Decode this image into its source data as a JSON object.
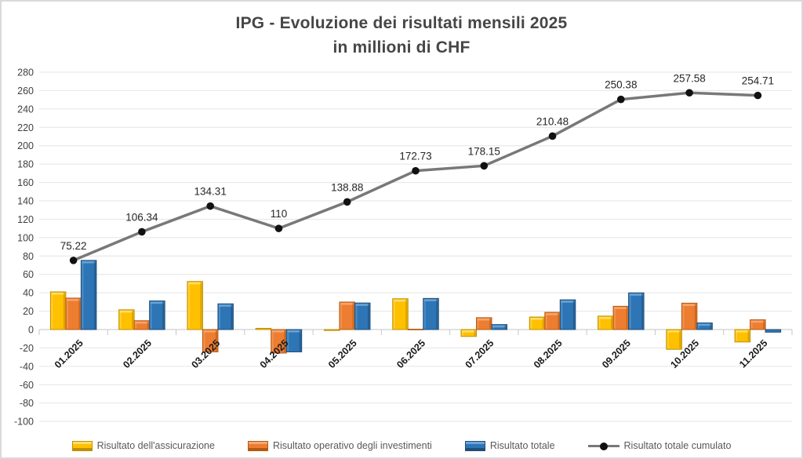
{
  "chart_data": {
    "type": "combo-bar-line",
    "title": "IPG - Evoluzione dei risultati mensili 2025",
    "subtitle": "in millioni di CHF",
    "categories": [
      "01.2025",
      "02.2025",
      "03.2025",
      "04.2025",
      "05.2025",
      "06.2025",
      "07.2025",
      "08.2025",
      "09.2025",
      "10.2025",
      "11.2025"
    ],
    "series": [
      {
        "name": "Risultato dell'assicurazione",
        "type": "bar",
        "color": "#FFC000",
        "color_light": "#FFDE6E",
        "color_dark": "#BF8F00",
        "values": [
          41.0,
          21.5,
          52.3,
          1.3,
          -1.0,
          33.5,
          -7.5,
          13.6,
          14.6,
          -21.5,
          -13.5
        ]
      },
      {
        "name": "Risultato operativo degli investimenti",
        "type": "bar",
        "color": "#ED7D31",
        "color_light": "#F5A870",
        "color_dark": "#B55A11",
        "values": [
          34.2,
          9.6,
          -24.3,
          -25.6,
          29.9,
          0.4,
          12.9,
          18.7,
          25.3,
          28.7,
          10.6
        ]
      },
      {
        "name": "Risultato totale",
        "type": "bar",
        "color": "#2E75B6",
        "color_light": "#6BA5D8",
        "color_dark": "#1F4E79",
        "values": [
          75.22,
          31.12,
          27.97,
          -24.31,
          28.88,
          33.85,
          5.42,
          32.33,
          39.9,
          7.2,
          -2.87
        ]
      },
      {
        "name": "Risultato totale cumulato",
        "type": "line",
        "color": "#787878",
        "marker_color": "#111111",
        "values": [
          75.22,
          106.34,
          134.31,
          110,
          138.88,
          172.73,
          178.15,
          210.48,
          250.38,
          257.58,
          254.71
        ],
        "labels": [
          "75.22",
          "106.34",
          "134.31",
          "110",
          "138.88",
          "172.73",
          "178.15",
          "210.48",
          "250.38",
          "257.58",
          "254.71"
        ]
      }
    ],
    "y_axis": {
      "min": -100,
      "max": 280,
      "step": 20
    },
    "grid": true,
    "legend_position": "bottom",
    "colors": {
      "gridline": "#e4e4e4",
      "axis_line": "#c6c6c6",
      "y_label": "#404040",
      "x_label": "#1a1a1a",
      "data_label": "#262626",
      "title": "#464646",
      "legend_text": "#595959",
      "frame_border": "#d9d9d9"
    }
  }
}
